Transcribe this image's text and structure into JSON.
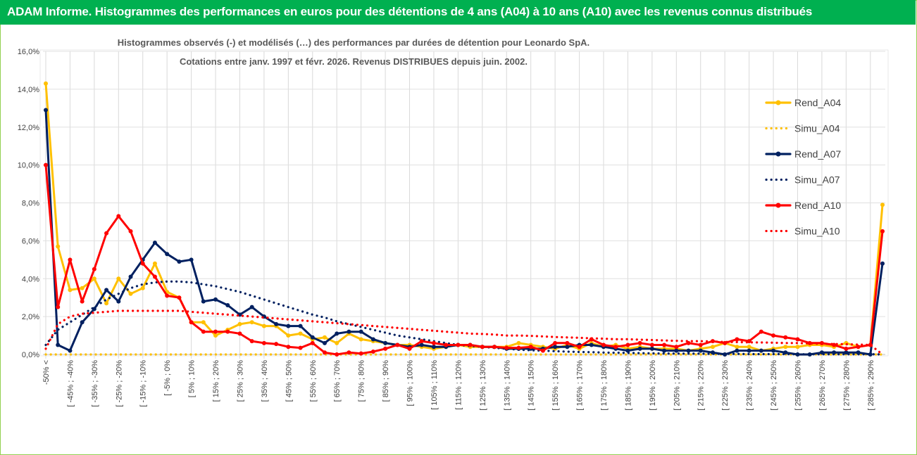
{
  "header": {
    "title": "ADAM Informe. Histogrammes des performances en euros pour des détentions de 4 ans (A04) à 10 ans (A10) avec les revenus connus distribués"
  },
  "colors": {
    "header_bg": "#00b050",
    "A04": "#ffc000",
    "A07": "#002060",
    "A10": "#ff0000"
  },
  "chart_data": {
    "type": "line",
    "title_lines": [
      "Histogrammes observés (-) et modélisés (…) des performances par durées de détention pour Leonardo SpA.",
      "Cotations entre janv. 1997 et févr. 2026. Revenus DISTRIBUES depuis juin. 2002."
    ],
    "y_ticks": [
      "0,0%",
      "2,0%",
      "4,0%",
      "6,0%",
      "8,0%",
      "10,0%",
      "12,0%",
      "14,0%",
      "16,0%"
    ],
    "ylim": [
      0,
      16
    ],
    "x_labels": [
      "-50% <",
      "[ -45% ; -40%",
      "[ -35% ; -30%",
      "[ -25% ; -20%",
      "[ -15% ; -10%",
      "[ -5% ; 0%",
      "[ 5% ; 10%",
      "[ 15% ; 20%",
      "[ 25% ; 30%",
      "[ 35% ; 40%",
      "[ 45% ; 50%",
      "[ 55% ; 60%",
      "[ 65% ; 70%",
      "[ 75% ; 80%",
      "[ 85% ; 90%",
      "[ 95% ; 100%",
      "[ 105% ; 110%",
      "[ 115% ; 120%",
      "[ 125% ; 130%",
      "[ 135% ; 140%",
      "[ 145% ; 150%",
      "[ 155% ; 160%",
      "[ 165% ; 170%",
      "[ 175% ; 180%",
      "[ 185% ; 190%",
      "[ 195% ; 200%",
      "[ 205% ; 210%",
      "[ 215% ; 220%",
      "[ 225% ; 230%",
      "[ 235% ; 240%",
      "[ 245% ; 250%",
      "[ 255% ; 260%",
      "[ 265% ; 270%",
      "[ 275% ; 280%",
      "[ 285% ; 290%"
    ],
    "n_points": 70,
    "legend_position": "right",
    "series": [
      {
        "name": "Rend_A04",
        "style": "solid",
        "color": "#ffc000",
        "values": [
          14.3,
          5.7,
          3.4,
          3.5,
          4.0,
          2.7,
          4.0,
          3.2,
          3.5,
          4.8,
          3.3,
          3.0,
          1.7,
          1.7,
          1.0,
          1.3,
          1.6,
          1.7,
          1.5,
          1.5,
          1.0,
          1.1,
          0.8,
          0.9,
          0.6,
          1.1,
          0.8,
          0.7,
          0.6,
          0.5,
          0.5,
          0.4,
          0.3,
          0.4,
          0.5,
          0.4,
          0.4,
          0.4,
          0.4,
          0.6,
          0.5,
          0.4,
          0.3,
          0.5,
          0.3,
          0.6,
          0.4,
          0.5,
          0.3,
          0.4,
          0.3,
          0.3,
          0.3,
          0.2,
          0.3,
          0.4,
          0.6,
          0.4,
          0.4,
          0.2,
          0.3,
          0.4,
          0.4,
          0.5,
          0.5,
          0.4,
          0.6,
          0.4,
          0.5,
          7.9
        ]
      },
      {
        "name": "Simu_A04",
        "style": "dotted",
        "color": "#ffc000",
        "values": [
          0,
          0,
          0,
          0,
          0,
          0,
          0,
          0,
          0,
          0,
          0,
          0,
          0,
          0,
          0,
          0,
          0,
          0,
          0,
          0,
          0,
          0,
          0,
          0,
          0,
          0,
          0,
          0,
          0,
          0,
          0,
          0,
          0,
          0,
          0,
          0,
          0,
          0,
          0,
          0,
          0,
          0,
          0,
          0,
          0,
          0,
          0,
          0,
          0,
          0,
          0,
          0,
          0,
          0,
          0,
          0,
          0,
          0,
          0,
          0,
          0,
          0,
          0,
          0,
          0,
          0,
          0,
          0,
          0,
          0
        ]
      },
      {
        "name": "Rend_A07",
        "style": "solid",
        "color": "#002060",
        "values": [
          12.9,
          0.5,
          0.2,
          1.7,
          2.4,
          3.4,
          2.8,
          4.1,
          5.0,
          5.9,
          5.3,
          4.9,
          5.0,
          2.8,
          2.9,
          2.6,
          2.1,
          2.5,
          2.0,
          1.6,
          1.5,
          1.5,
          0.9,
          0.6,
          1.1,
          1.2,
          1.2,
          0.8,
          0.6,
          0.5,
          0.4,
          0.5,
          0.4,
          0.4,
          0.5,
          0.5,
          0.4,
          0.4,
          0.3,
          0.3,
          0.3,
          0.3,
          0.4,
          0.4,
          0.5,
          0.5,
          0.4,
          0.3,
          0.2,
          0.3,
          0.3,
          0.2,
          0.2,
          0.2,
          0.2,
          0.1,
          0.0,
          0.2,
          0.2,
          0.2,
          0.2,
          0.1,
          0.0,
          0.0,
          0.1,
          0.1,
          0.1,
          0.1,
          0.0,
          4.8
        ]
      },
      {
        "name": "Simu_A07",
        "style": "dotted",
        "color": "#002060",
        "values": [
          0.5,
          1.3,
          1.7,
          2.1,
          2.5,
          2.9,
          3.2,
          3.5,
          3.7,
          3.8,
          3.85,
          3.85,
          3.8,
          3.7,
          3.6,
          3.45,
          3.3,
          3.1,
          2.9,
          2.7,
          2.5,
          2.3,
          2.1,
          1.95,
          1.75,
          1.6,
          1.45,
          1.3,
          1.15,
          1.0,
          0.9,
          0.8,
          0.7,
          0.6,
          0.5,
          0.45,
          0.4,
          0.35,
          0.3,
          0.25,
          0.22,
          0.2,
          0.17,
          0.15,
          0.13,
          0.12,
          0.1,
          0.09,
          0.08,
          0.07,
          0.06,
          0.05,
          0.05,
          0.04,
          0.04,
          0.03,
          0.03,
          0.03,
          0.02,
          0.02,
          0.02,
          0.02,
          0.01,
          0.01,
          0.01,
          0.01,
          0.01,
          0.01,
          0.01,
          0.0
        ]
      },
      {
        "name": "Rend_A10",
        "style": "solid",
        "color": "#ff0000",
        "values": [
          10.0,
          2.5,
          5.0,
          2.8,
          4.5,
          6.4,
          7.3,
          6.5,
          4.8,
          4.1,
          3.1,
          3.0,
          1.7,
          1.2,
          1.2,
          1.2,
          1.1,
          0.7,
          0.6,
          0.55,
          0.4,
          0.35,
          0.6,
          0.1,
          0.0,
          0.1,
          0.05,
          0.15,
          0.3,
          0.5,
          0.3,
          0.7,
          0.6,
          0.5,
          0.5,
          0.5,
          0.4,
          0.4,
          0.35,
          0.35,
          0.4,
          0.2,
          0.6,
          0.6,
          0.4,
          0.8,
          0.5,
          0.4,
          0.5,
          0.6,
          0.5,
          0.5,
          0.4,
          0.6,
          0.5,
          0.7,
          0.6,
          0.8,
          0.7,
          1.2,
          1.0,
          0.9,
          0.8,
          0.6,
          0.6,
          0.5,
          0.3,
          0.4,
          0.5,
          6.5
        ]
      },
      {
        "name": "Simu_A10",
        "style": "dotted",
        "color": "#ff0000",
        "values": [
          0.3,
          1.6,
          2.0,
          2.15,
          2.2,
          2.25,
          2.3,
          2.3,
          2.3,
          2.3,
          2.3,
          2.3,
          2.25,
          2.2,
          2.15,
          2.1,
          2.05,
          2.0,
          1.95,
          1.9,
          1.85,
          1.8,
          1.75,
          1.7,
          1.65,
          1.6,
          1.55,
          1.5,
          1.45,
          1.4,
          1.35,
          1.3,
          1.25,
          1.2,
          1.15,
          1.1,
          1.08,
          1.05,
          1.0,
          1.0,
          0.98,
          0.95,
          0.92,
          0.9,
          0.88,
          0.85,
          0.83,
          0.8,
          0.8,
          0.78,
          0.76,
          0.74,
          0.72,
          0.7,
          0.7,
          0.68,
          0.66,
          0.65,
          0.64,
          0.63,
          0.62,
          0.6,
          0.6,
          0.58,
          0.56,
          0.55,
          0.54,
          0.52,
          0.5,
          0.0
        ]
      }
    ]
  }
}
